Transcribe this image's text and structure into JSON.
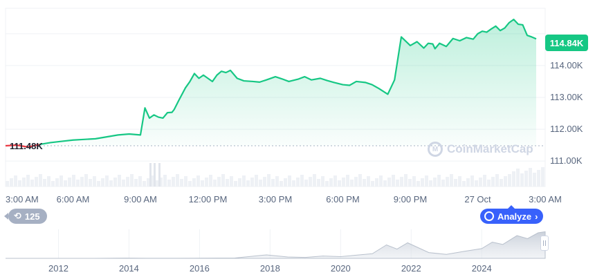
{
  "chart_data": [
    {
      "type": "line",
      "title": "",
      "xlabel": "",
      "ylabel": "",
      "x_ticks": [
        "3:00 AM",
        "6:00 AM",
        "9:00 AM",
        "12:00 PM",
        "3:00 PM",
        "6:00 PM",
        "9:00 PM",
        "27 Oct",
        "3:00 AM"
      ],
      "y_ticks": [
        "114.00K",
        "113.00K",
        "112.00K",
        "111.00K"
      ],
      "ylim": [
        110200,
        115800
      ],
      "xlim": [
        0,
        24
      ],
      "start_price_label": "111.48K",
      "start_price": 111480,
      "current_price_label": "114.84K",
      "current_price": 114840,
      "series": [
        {
          "color_up": "#16c784",
          "color_down": "#ea3943",
          "x": [
            0.0,
            0.5,
            1.0,
            1.5,
            2.0,
            2.5,
            3.0,
            3.5,
            4.0,
            4.5,
            5.0,
            5.5,
            6.0,
            6.2,
            6.4,
            6.6,
            6.8,
            7.0,
            7.2,
            7.4,
            7.5,
            7.7,
            8.0,
            8.2,
            8.4,
            8.6,
            8.8,
            9.0,
            9.2,
            9.4,
            9.6,
            9.8,
            10.0,
            10.3,
            10.6,
            11.0,
            11.3,
            11.6,
            12.0,
            12.3,
            12.6,
            13.0,
            13.3,
            13.6,
            14.0,
            14.3,
            14.6,
            15.0,
            15.3,
            15.6,
            16.0,
            16.3,
            16.6,
            17.0,
            17.3,
            17.6,
            18.0,
            18.3,
            18.6,
            18.8,
            19.0,
            19.1,
            19.3,
            19.6,
            19.9,
            20.2,
            20.5,
            20.8,
            21.0,
            21.2,
            21.4,
            21.6,
            21.8,
            22.0,
            22.2,
            22.4,
            22.6,
            22.8,
            23.0,
            23.2,
            23.4,
            23.6
          ],
          "y": [
            111480,
            111500,
            111440,
            111520,
            111580,
            111620,
            111660,
            111680,
            111700,
            111760,
            111820,
            111850,
            111820,
            112670,
            112350,
            112450,
            112380,
            112350,
            112520,
            112530,
            112620,
            112900,
            113300,
            113500,
            113750,
            113600,
            113700,
            113600,
            113500,
            113700,
            113820,
            113780,
            113850,
            113600,
            113520,
            113500,
            113480,
            113550,
            113650,
            113580,
            113500,
            113570,
            113650,
            113550,
            113600,
            113530,
            113470,
            113400,
            113380,
            113500,
            113470,
            113400,
            113280,
            113100,
            113550,
            114900,
            114630,
            114750,
            114550,
            114700,
            114680,
            114530,
            114700,
            114600,
            114850,
            114780,
            114880,
            114830,
            115000,
            115080,
            115050,
            115150,
            115240,
            115100,
            115180,
            115350,
            115450,
            115300,
            115280,
            114950,
            114900,
            114840
          ]
        }
      ]
    },
    {
      "type": "area",
      "title": "",
      "x_ticks": [
        "2012",
        "2014",
        "2016",
        "2018",
        "2020",
        "2022",
        "2024"
      ],
      "x": [
        2010.5,
        2012,
        2013,
        2013.9,
        2014.5,
        2016,
        2017,
        2017.9,
        2018.5,
        2019,
        2019.5,
        2020,
        2020.9,
        2021.3,
        2021.6,
        2021.9,
        2022.5,
        2023,
        2023.5,
        2024,
        2024.3,
        2024.6,
        2025,
        2025.3,
        2025.6,
        2025.8
      ],
      "y": [
        0,
        0,
        0,
        1100,
        500,
        600,
        1500,
        15000,
        6000,
        4000,
        10000,
        7500,
        20000,
        58000,
        40000,
        67000,
        25000,
        17000,
        30000,
        42000,
        70000,
        60000,
        98000,
        85000,
        110000,
        114840
      ],
      "ylim": [
        0,
        125000
      ]
    }
  ],
  "history_badge": {
    "icon": "history-icon",
    "count": "125"
  },
  "analyze_button": {
    "icon": "cmc-logo-icon",
    "label": "Analyze",
    "chevron": "›"
  },
  "watermark": {
    "icon": "cmc-logo-icon",
    "text": "CoinMarketCap"
  },
  "range_handle": {
    "icon": "drag-handle-icon"
  },
  "colors": {
    "up": "#16c784",
    "down": "#ea3943",
    "accent": "#3861fb",
    "grid": "#eff2f5"
  }
}
